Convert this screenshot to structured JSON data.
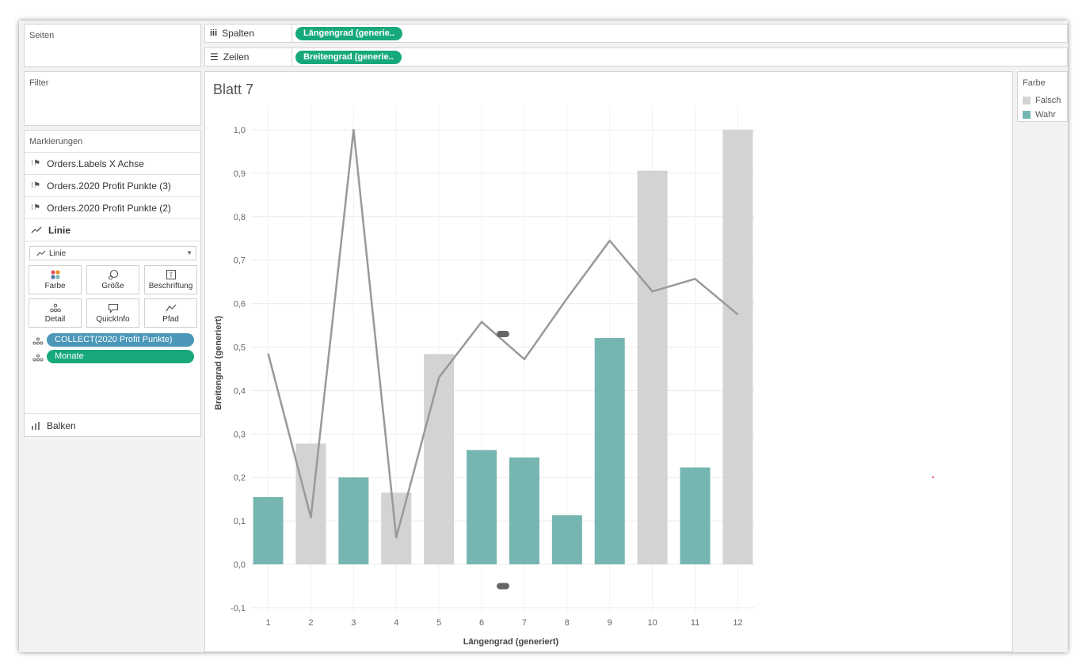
{
  "pages": {
    "title": "Seiten"
  },
  "columns_shelf": {
    "label": "Spalten",
    "icon": "columns-icon",
    "pill": "Längengrad (generie.."
  },
  "rows_shelf": {
    "label": "Zeilen",
    "icon": "rows-icon",
    "pill": "Breitengrad (generie.."
  },
  "filter": {
    "title": "Filter"
  },
  "marks": {
    "title": "Markierungen",
    "layers": [
      {
        "label": "Orders.Labels X Achse",
        "icon": "map-icon"
      },
      {
        "label": "Orders.2020 Profit Punkte (3)",
        "icon": "map-icon"
      },
      {
        "label": "Orders.2020 Profit Punkte (2)",
        "icon": "map-icon"
      },
      {
        "label": "Linie",
        "icon": "line-icon"
      }
    ],
    "mark_type": "Linie",
    "buttons": [
      {
        "label": "Farbe",
        "icon": "color-icon"
      },
      {
        "label": "Größe",
        "icon": "size-icon"
      },
      {
        "label": "Beschriftung",
        "icon": "label-icon"
      },
      {
        "label": "Detail",
        "icon": "detail-icon"
      },
      {
        "label": "QuickInfo",
        "icon": "tooltip-icon"
      },
      {
        "label": "Pfad",
        "icon": "path-icon"
      }
    ],
    "fields": [
      {
        "label": "COLLECT(2020 Profit Punkte)",
        "color": "#4a97b8"
      },
      {
        "label": "Monate",
        "color": "#17a97b"
      }
    ],
    "bottom_layer": {
      "label": "Balken",
      "icon": "bar-icon"
    }
  },
  "sheet": {
    "title": "Blatt 7"
  },
  "legend": {
    "title": "Farbe",
    "items": [
      {
        "label": "Falsch",
        "color": "#d3d3d3"
      },
      {
        "label": "Wahr",
        "color": "#76b6b1"
      }
    ]
  },
  "colors": {
    "accent_green": "#17a97b",
    "accent_blue": "#4a97b8",
    "bar_true": "#76b6b1",
    "bar_false": "#d3d3d3",
    "line": "#999999"
  },
  "chart_data": {
    "type": "bar",
    "xlabel": "Längengrad (generiert)",
    "ylabel": "Breitengrad (generiert)",
    "ylim": [
      -0.1,
      1.0
    ],
    "yticks": [
      -0.1,
      0.0,
      0.1,
      0.2,
      0.3,
      0.4,
      0.5,
      0.6,
      0.7,
      0.8,
      0.9,
      1.0
    ],
    "ytick_labels": [
      "-0,1",
      "0,0",
      "0,1",
      "0,2",
      "0,3",
      "0,4",
      "0,5",
      "0,6",
      "0,7",
      "0,8",
      "0,9",
      "1,0"
    ],
    "categories": [
      "1",
      "2",
      "3",
      "4",
      "5",
      "6",
      "7",
      "8",
      "9",
      "10",
      "11",
      "12"
    ],
    "bars": [
      {
        "x": 1,
        "value": 0.155,
        "wahr": true
      },
      {
        "x": 2,
        "value": 0.278,
        "wahr": false
      },
      {
        "x": 3,
        "value": 0.2,
        "wahr": true
      },
      {
        "x": 4,
        "value": 0.165,
        "wahr": false
      },
      {
        "x": 5,
        "value": 0.484,
        "wahr": false
      },
      {
        "x": 6,
        "value": 0.263,
        "wahr": true
      },
      {
        "x": 7,
        "value": 0.246,
        "wahr": true
      },
      {
        "x": 8,
        "value": 0.113,
        "wahr": true
      },
      {
        "x": 9,
        "value": 0.521,
        "wahr": true
      },
      {
        "x": 10,
        "value": 0.906,
        "wahr": false
      },
      {
        "x": 11,
        "value": 0.223,
        "wahr": true
      },
      {
        "x": 12,
        "value": 1.0,
        "wahr": false
      }
    ],
    "line": [
      {
        "x": 1,
        "y": 0.485
      },
      {
        "x": 2,
        "y": 0.108
      },
      {
        "x": 3,
        "y": 1.0
      },
      {
        "x": 4,
        "y": 0.062
      },
      {
        "x": 5,
        "y": 0.43
      },
      {
        "x": 6,
        "y": 0.558
      },
      {
        "x": 7,
        "y": 0.472
      },
      {
        "x": 8,
        "y": 0.612
      },
      {
        "x": 9,
        "y": 0.745
      },
      {
        "x": 10,
        "y": 0.628
      },
      {
        "x": 11,
        "y": 0.657
      },
      {
        "x": 12,
        "y": 0.575
      }
    ],
    "markers": [
      {
        "x": 6.5,
        "y": 0.53
      },
      {
        "x": 6.5,
        "y": -0.05
      }
    ],
    "grid": true
  }
}
